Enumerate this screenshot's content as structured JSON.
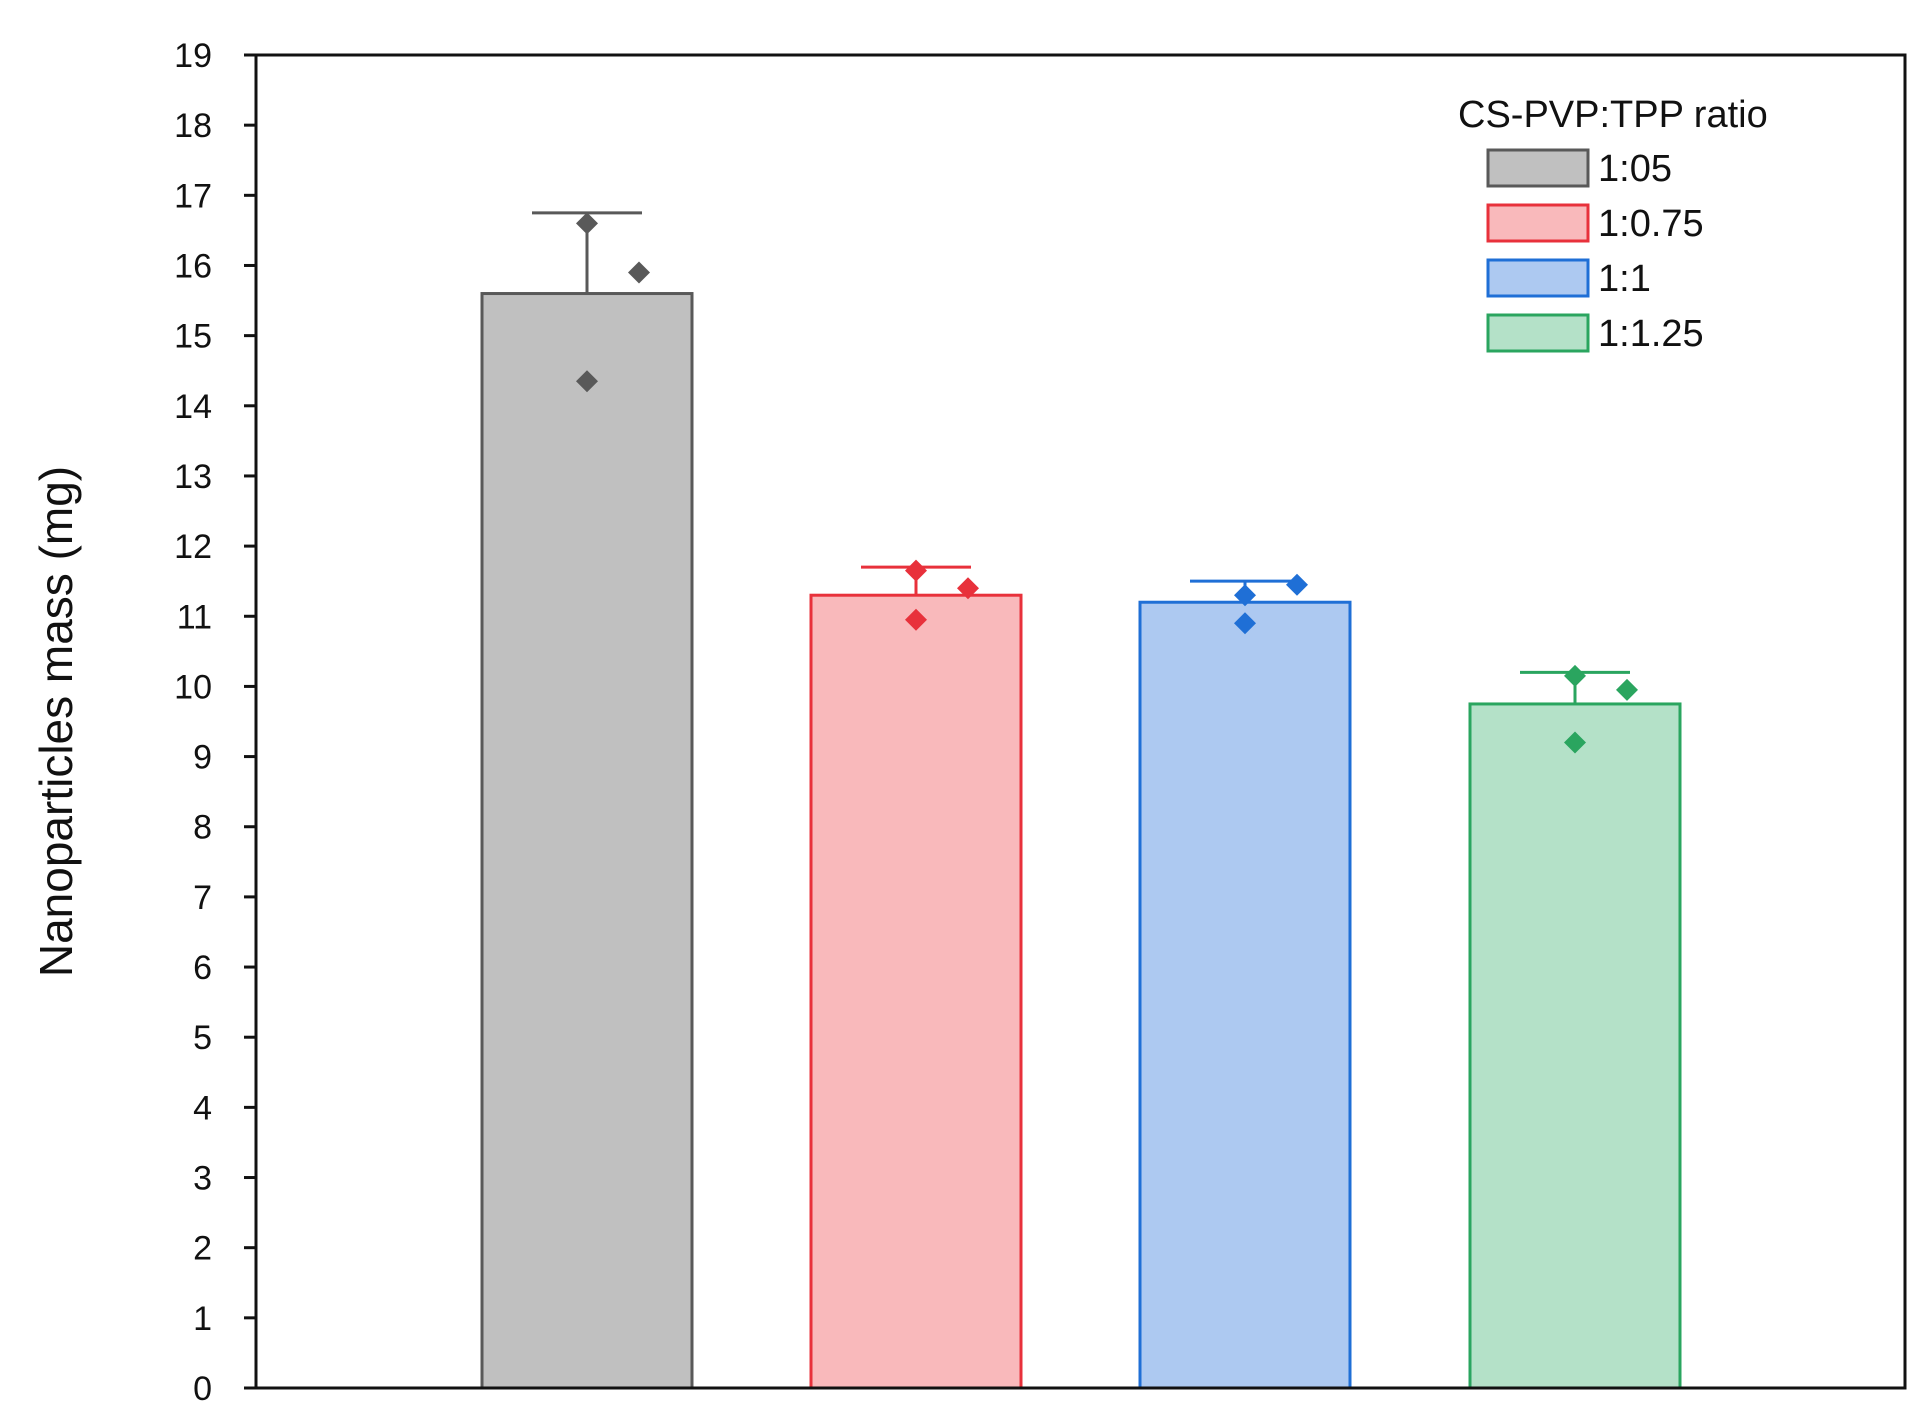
{
  "chart_data": {
    "type": "bar",
    "ylabel": "Nanoparticles mass (mg)",
    "ylim": [
      0,
      19
    ],
    "yticks": [
      0,
      1,
      2,
      3,
      4,
      5,
      6,
      7,
      8,
      9,
      10,
      11,
      12,
      13,
      14,
      15,
      16,
      17,
      18,
      19
    ],
    "legend": {
      "title": "CS-PVP:TPP ratio",
      "placement": "top-right"
    },
    "grid": false,
    "series": [
      {
        "name": "1:05",
        "value": 15.6,
        "error": 1.15,
        "points": [
          16.6,
          15.9,
          14.35
        ],
        "color": "#595959",
        "fill": "#c0c0c0"
      },
      {
        "name": "1:0.75",
        "value": 11.3,
        "error": 0.4,
        "points": [
          11.65,
          11.4,
          10.95
        ],
        "color": "#e8313b",
        "fill": "#f9b9bb"
      },
      {
        "name": "1:1",
        "value": 11.2,
        "error": 0.3,
        "points": [
          11.3,
          11.45,
          10.9
        ],
        "color": "#1f6fd6",
        "fill": "#adc9f1"
      },
      {
        "name": "1:1.25",
        "value": 9.75,
        "error": 0.45,
        "points": [
          10.15,
          9.95,
          9.2
        ],
        "color": "#2aa55f",
        "fill": "#b4e1c8"
      }
    ]
  }
}
